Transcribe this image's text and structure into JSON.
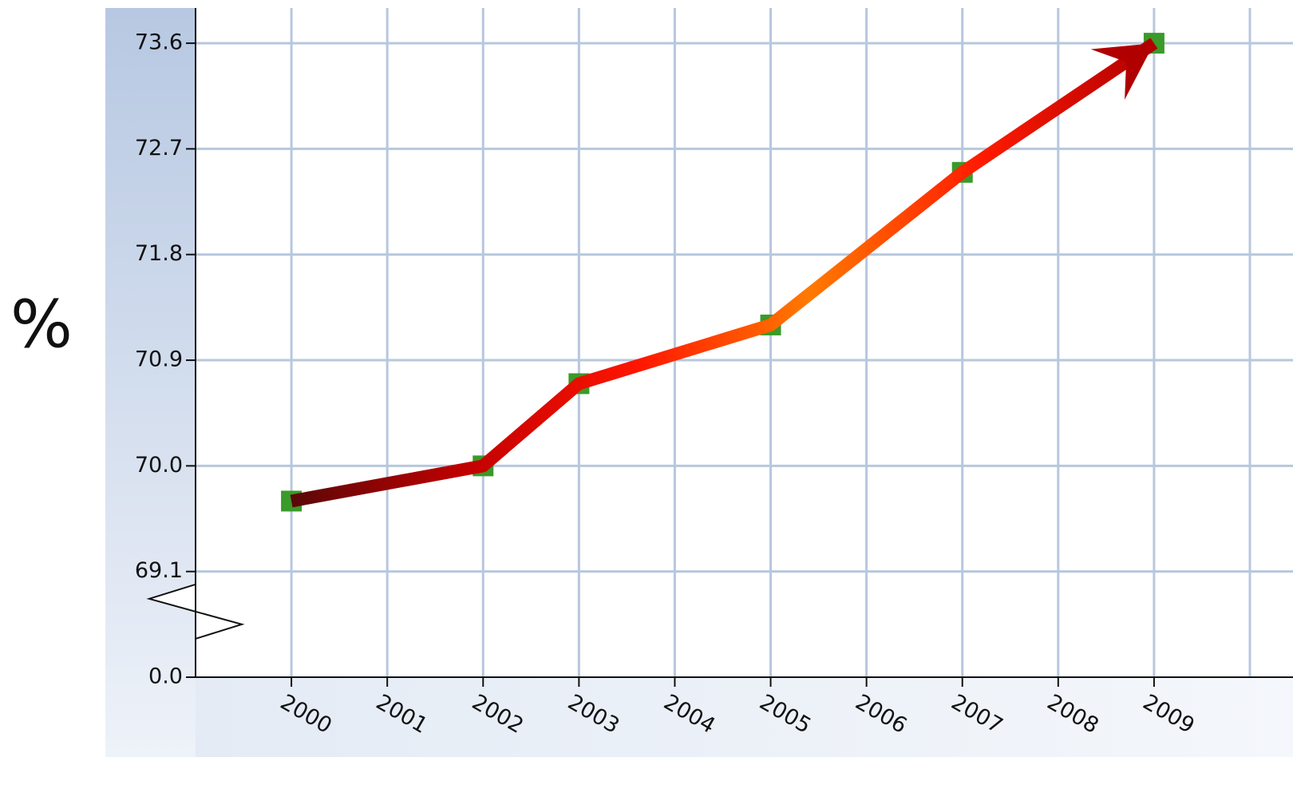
{
  "chart_data": {
    "type": "line",
    "y_label": "%",
    "x": [
      2000,
      2002,
      2003,
      2005,
      2007,
      2009
    ],
    "values": [
      69.7,
      70.0,
      70.7,
      71.2,
      72.5,
      73.6
    ],
    "xlim": [
      1999,
      2010
    ],
    "xticks": [
      2000,
      2001,
      2002,
      2003,
      2004,
      2005,
      2006,
      2007,
      2008,
      2009
    ],
    "ylim": [
      0,
      73.9
    ],
    "yticks": [
      {
        "value": 0,
        "label": "0.0"
      },
      69.1,
      {
        "value": 70,
        "label": "70.0"
      },
      70.9,
      71.8,
      72.7,
      73.6
    ],
    "y_break": true,
    "grid": true,
    "marker_color": "#3a9a2a",
    "line_gradient": [
      "#5a0808",
      "#c00000",
      "#ff1500",
      "#ff7a00",
      "#ff1a00",
      "#b00000"
    ]
  }
}
